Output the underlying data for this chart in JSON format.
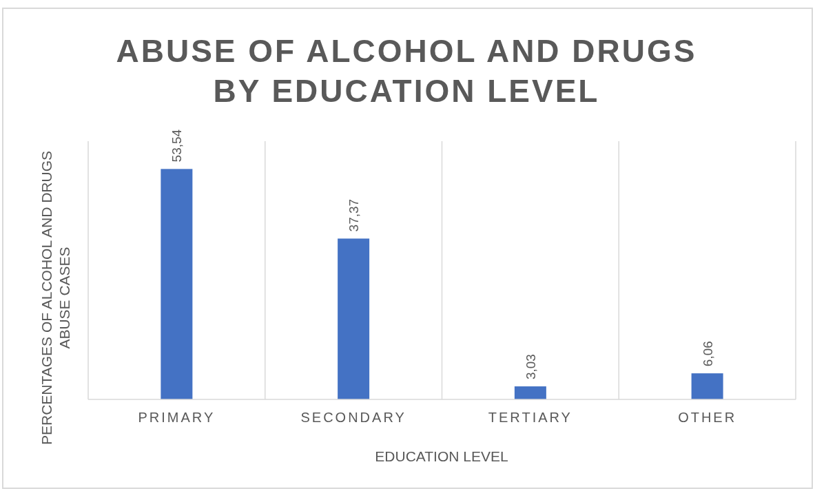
{
  "chart_data": {
    "type": "bar",
    "title": "ABUSE OF ALCOHOL AND DRUGS BY EDUCATION LEVEL",
    "xlabel": "EDUCATION LEVEL",
    "ylabel": "PERCENTAGES OF ALCOHOL AND DRUGS ABUSE CASES",
    "categories": [
      "PRIMARY",
      "SECONDARY",
      "TERTIARY",
      "OTHER"
    ],
    "values": [
      53.54,
      37.37,
      3.03,
      6.06
    ],
    "value_labels": [
      "53,54",
      "37,37",
      "3,03",
      "6,06"
    ],
    "color": "#4472c4",
    "ylim": [
      0,
      60
    ],
    "grid": "x",
    "tick_labels": "x"
  }
}
